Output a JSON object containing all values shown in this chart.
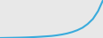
{
  "line_color": "#3aabdc",
  "line_width": 1.5,
  "background_color": "#e8e8e8",
  "x_values": [
    0,
    1,
    2,
    3,
    4,
    5,
    6,
    7,
    8,
    9,
    10,
    11,
    12,
    13,
    14,
    15,
    16,
    17,
    18,
    19,
    20
  ],
  "y_values": [
    0.0,
    0.05,
    0.1,
    0.15,
    0.2,
    0.28,
    0.38,
    0.5,
    0.65,
    0.82,
    1.0,
    1.3,
    1.7,
    2.2,
    2.9,
    3.8,
    5.0,
    6.8,
    9.2,
    13.0,
    18.5
  ]
}
